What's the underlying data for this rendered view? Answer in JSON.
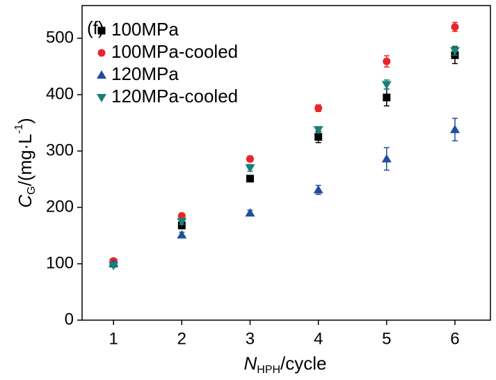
{
  "chart_data": {
    "type": "scatter",
    "panel_label": "(f)",
    "xlabel": [
      "N",
      "HPH",
      "/cycle"
    ],
    "ylabel": [
      "C",
      "G",
      "/(mg·L",
      "-1",
      ")"
    ],
    "x": [
      1,
      2,
      3,
      4,
      5,
      6
    ],
    "xlim": [
      0.54,
      6.52
    ],
    "xticks": [
      1,
      2,
      3,
      4,
      5,
      6
    ],
    "ylim": [
      0,
      558
    ],
    "yticks": [
      0,
      100,
      200,
      300,
      400,
      500
    ],
    "series": [
      {
        "name": "100MPa",
        "color": "#000000",
        "marker": "square",
        "values": [
          102,
          168,
          251,
          325,
          395,
          470
        ],
        "errors": [
          3,
          6,
          5,
          10,
          15,
          15
        ]
      },
      {
        "name": "100MPa-cooled",
        "color": "#e8262a",
        "marker": "circle",
        "values": [
          105,
          185,
          286,
          376,
          459,
          520
        ],
        "errors": [
          3,
          4,
          5,
          6,
          10,
          8
        ]
      },
      {
        "name": "120MPa",
        "color": "#1f4e9c",
        "marker": "triangle-up",
        "values": [
          100,
          151,
          190,
          231,
          286,
          338
        ],
        "errors": [
          3,
          5,
          5,
          8,
          20,
          20
        ]
      },
      {
        "name": "120MPa-cooled",
        "color": "#1a7f7a",
        "marker": "triangle-down",
        "values": [
          97,
          175,
          270,
          338,
          418,
          478
        ],
        "errors": [
          3,
          5,
          6,
          5,
          8,
          8
        ]
      }
    ]
  }
}
